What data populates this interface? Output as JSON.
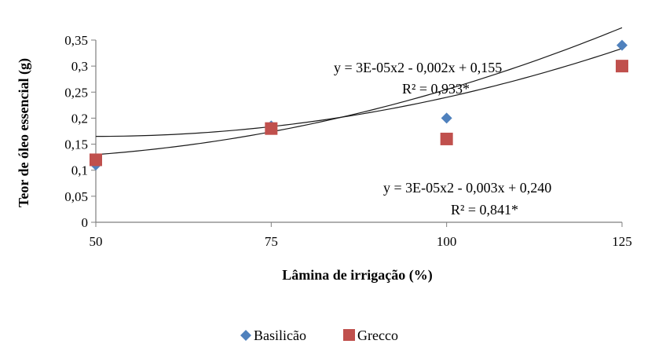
{
  "chart_data": {
    "type": "scatter",
    "xlabel": "Lâmina de irrigação (%)",
    "ylabel": "Teor de óleo essencial (g)",
    "x_ticks": [
      "50",
      "75",
      "100",
      "125"
    ],
    "y_ticks": [
      "0",
      "0,05",
      "0,1",
      "0,15",
      "0,2",
      "0,25",
      "0,3",
      "0,35"
    ],
    "xlim": [
      50,
      125
    ],
    "ylim": [
      0,
      0.35
    ],
    "grid": false,
    "legend_position": "bottom",
    "series": [
      {
        "name": "Basilicão",
        "marker": "diamond",
        "color": "#4f81bd",
        "x": [
          50,
          75,
          100,
          125
        ],
        "y": [
          0.11,
          0.185,
          0.2,
          0.34
        ],
        "trend": {
          "a": 3e-05,
          "b": -0.002,
          "c": 0.155,
          "equation": "y = 3E-05x2 - 0,002x + 0,155",
          "r2": "R² = 0,933*"
        }
      },
      {
        "name": "Grecco",
        "marker": "square",
        "color": "#c0504d",
        "x": [
          50,
          75,
          100,
          125
        ],
        "y": [
          0.12,
          0.18,
          0.16,
          0.3
        ],
        "trend": {
          "a": 3e-05,
          "b": -0.003,
          "c": 0.24,
          "equation": "y = 3E-05x2 - 0,003x + 0,240",
          "r2": "R² = 0,841*"
        }
      }
    ]
  }
}
